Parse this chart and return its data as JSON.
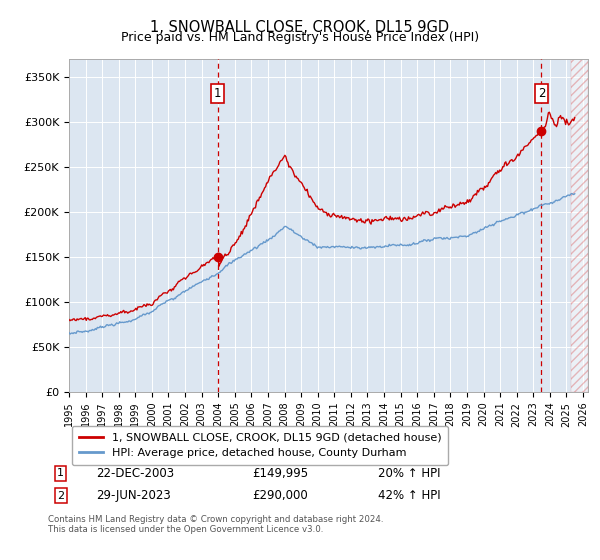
{
  "title": "1, SNOWBALL CLOSE, CROOK, DL15 9GD",
  "subtitle": "Price paid vs. HM Land Registry's House Price Index (HPI)",
  "ylabel_ticks": [
    "£0",
    "£50K",
    "£100K",
    "£150K",
    "£200K",
    "£250K",
    "£300K",
    "£350K"
  ],
  "ytick_values": [
    0,
    50000,
    100000,
    150000,
    200000,
    250000,
    300000,
    350000
  ],
  "ylim": [
    0,
    370000
  ],
  "xlim_start": 1995.0,
  "xlim_end": 2026.3,
  "hatch_start": 2025.25,
  "sale1_x": 2003.97,
  "sale1_y": 149995,
  "sale2_x": 2023.49,
  "sale2_y": 290000,
  "sale1_label": "22-DEC-2003",
  "sale1_price": "£149,995",
  "sale1_hpi": "20% ↑ HPI",
  "sale2_label": "29-JUN-2023",
  "sale2_price": "£290,000",
  "sale2_hpi": "42% ↑ HPI",
  "legend_line1": "1, SNOWBALL CLOSE, CROOK, DL15 9GD (detached house)",
  "legend_line2": "HPI: Average price, detached house, County Durham",
  "footer1": "Contains HM Land Registry data © Crown copyright and database right 2024.",
  "footer2": "This data is licensed under the Open Government Licence v3.0.",
  "plot_bg": "#dce6f1",
  "line1_color": "#cc0000",
  "line2_color": "#6699cc",
  "grid_color": "#ffffff"
}
